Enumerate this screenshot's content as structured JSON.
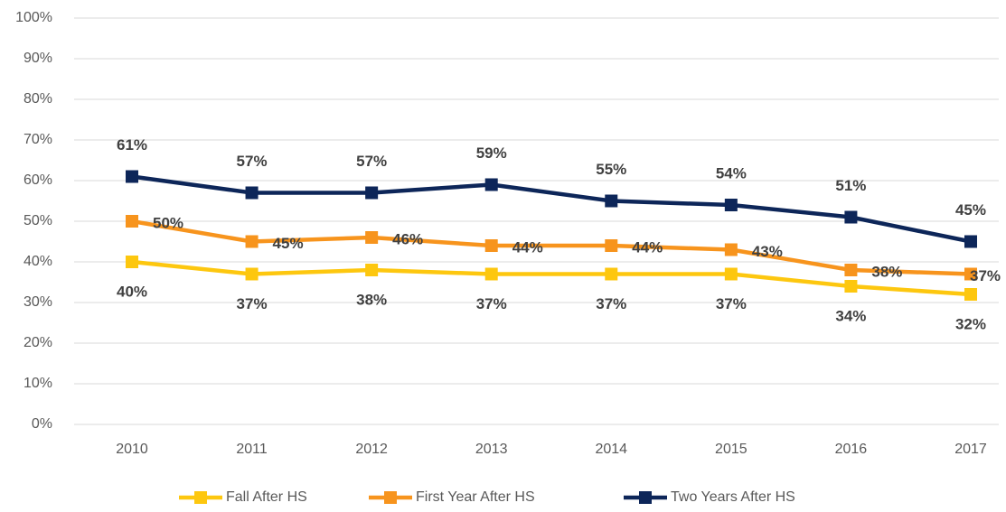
{
  "chart_data": {
    "type": "line",
    "categories": [
      "2010",
      "2011",
      "2012",
      "2013",
      "2014",
      "2015",
      "2016",
      "2017"
    ],
    "series": [
      {
        "name": "Fall After HS",
        "color": "#FDC70F",
        "values": [
          40,
          37,
          38,
          37,
          37,
          37,
          34,
          32
        ],
        "value_labels": [
          "40%",
          "37%",
          "38%",
          "37%",
          "37%",
          "37%",
          "34%",
          "32%"
        ]
      },
      {
        "name": "First Year After HS",
        "color": "#F7941D",
        "values": [
          50,
          45,
          46,
          44,
          44,
          43,
          38,
          37
        ],
        "value_labels": [
          "50%",
          "45%",
          "46%",
          "44%",
          "44%",
          "43%",
          "38%",
          "37%"
        ]
      },
      {
        "name": "Two Years After HS",
        "color": "#0D2659",
        "values": [
          61,
          57,
          57,
          59,
          55,
          54,
          51,
          45
        ],
        "value_labels": [
          "61%",
          "57%",
          "57%",
          "59%",
          "55%",
          "54%",
          "51%",
          "45%"
        ]
      }
    ],
    "ylim": [
      0,
      100
    ],
    "yticks": [
      {
        "value": 0,
        "label": "0%"
      },
      {
        "value": 10,
        "label": "10%"
      },
      {
        "value": 20,
        "label": "20%"
      },
      {
        "value": 30,
        "label": "30%"
      },
      {
        "value": 40,
        "label": "40%"
      },
      {
        "value": 50,
        "label": "50%"
      },
      {
        "value": 60,
        "label": "60%"
      },
      {
        "value": 70,
        "label": "70%"
      },
      {
        "value": 80,
        "label": "80%"
      },
      {
        "value": 90,
        "label": "90%"
      },
      {
        "value": 100,
        "label": "100%"
      }
    ],
    "grid": true,
    "legend": "bottom"
  }
}
